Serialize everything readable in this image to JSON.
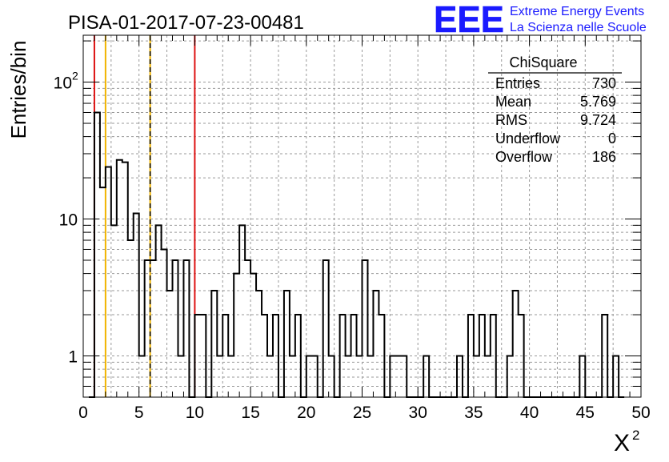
{
  "chart_data": {
    "type": "histogram",
    "title": "PISA-01-2017-07-23-00481",
    "xlabel": "X",
    "xlabel_superscript": "2",
    "ylabel": "Entries/bin",
    "x_range": [
      0,
      50
    ],
    "y_scale": "log",
    "y_range": [
      0.5,
      220
    ],
    "grid": true,
    "bin_width": 0.5,
    "x_ticks": [
      "0",
      "5",
      "10",
      "15",
      "20",
      "25",
      "30",
      "35",
      "40",
      "45",
      "50"
    ],
    "y_ticks": [
      {
        "base": "10",
        "exp": "",
        "value": 10
      },
      {
        "base": "10",
        "exp": "2",
        "value": 100
      },
      {
        "base": "1",
        "exp": "",
        "value": 1
      }
    ],
    "bins": [
      {
        "x": 0.5,
        "y": 0
      },
      {
        "x": 1.0,
        "y": 60
      },
      {
        "x": 1.5,
        "y": 17
      },
      {
        "x": 2.0,
        "y": 24
      },
      {
        "x": 2.5,
        "y": 9
      },
      {
        "x": 3.0,
        "y": 27
      },
      {
        "x": 3.5,
        "y": 26
      },
      {
        "x": 4.0,
        "y": 7
      },
      {
        "x": 4.5,
        "y": 11
      },
      {
        "x": 5.0,
        "y": 1
      },
      {
        "x": 5.5,
        "y": 5
      },
      {
        "x": 6.0,
        "y": 5
      },
      {
        "x": 6.5,
        "y": 9
      },
      {
        "x": 7.0,
        "y": 6
      },
      {
        "x": 7.5,
        "y": 3
      },
      {
        "x": 8.0,
        "y": 5
      },
      {
        "x": 8.5,
        "y": 1
      },
      {
        "x": 9.0,
        "y": 5
      },
      {
        "x": 9.5,
        "y": 0
      },
      {
        "x": 10.0,
        "y": 2
      },
      {
        "x": 10.5,
        "y": 2
      },
      {
        "x": 11.0,
        "y": 0
      },
      {
        "x": 11.5,
        "y": 3
      },
      {
        "x": 12.0,
        "y": 1
      },
      {
        "x": 12.5,
        "y": 2
      },
      {
        "x": 13.0,
        "y": 1
      },
      {
        "x": 13.5,
        "y": 4
      },
      {
        "x": 14.0,
        "y": 9
      },
      {
        "x": 14.5,
        "y": 5
      },
      {
        "x": 15.0,
        "y": 4
      },
      {
        "x": 15.5,
        "y": 3
      },
      {
        "x": 16.0,
        "y": 2
      },
      {
        "x": 16.5,
        "y": 1
      },
      {
        "x": 17.0,
        "y": 2
      },
      {
        "x": 17.5,
        "y": 0
      },
      {
        "x": 18.0,
        "y": 3
      },
      {
        "x": 18.5,
        "y": 1
      },
      {
        "x": 19.0,
        "y": 2
      },
      {
        "x": 19.5,
        "y": 0
      },
      {
        "x": 20.0,
        "y": 1
      },
      {
        "x": 20.5,
        "y": 1
      },
      {
        "x": 21.0,
        "y": 0
      },
      {
        "x": 21.5,
        "y": 5
      },
      {
        "x": 22.0,
        "y": 1
      },
      {
        "x": 22.5,
        "y": 0
      },
      {
        "x": 23.0,
        "y": 2
      },
      {
        "x": 23.5,
        "y": 1
      },
      {
        "x": 24.0,
        "y": 2
      },
      {
        "x": 24.5,
        "y": 1
      },
      {
        "x": 25.0,
        "y": 5
      },
      {
        "x": 25.5,
        "y": 1
      },
      {
        "x": 26.0,
        "y": 3
      },
      {
        "x": 26.5,
        "y": 2
      },
      {
        "x": 27.0,
        "y": 0
      },
      {
        "x": 27.5,
        "y": 1
      },
      {
        "x": 28.0,
        "y": 1
      },
      {
        "x": 28.5,
        "y": 1
      },
      {
        "x": 29.0,
        "y": 0
      },
      {
        "x": 29.5,
        "y": 0
      },
      {
        "x": 30.0,
        "y": 0
      },
      {
        "x": 30.5,
        "y": 1
      },
      {
        "x": 31.0,
        "y": 0
      },
      {
        "x": 31.5,
        "y": 0
      },
      {
        "x": 32.0,
        "y": 0
      },
      {
        "x": 32.5,
        "y": 0
      },
      {
        "x": 33.0,
        "y": 0
      },
      {
        "x": 33.5,
        "y": 1
      },
      {
        "x": 34.0,
        "y": 0
      },
      {
        "x": 34.5,
        "y": 2
      },
      {
        "x": 35.0,
        "y": 1
      },
      {
        "x": 35.5,
        "y": 2
      },
      {
        "x": 36.0,
        "y": 1
      },
      {
        "x": 36.5,
        "y": 2
      },
      {
        "x": 37.0,
        "y": 0
      },
      {
        "x": 37.5,
        "y": 0
      },
      {
        "x": 38.0,
        "y": 1
      },
      {
        "x": 38.5,
        "y": 3
      },
      {
        "x": 39.0,
        "y": 2
      },
      {
        "x": 39.5,
        "y": 0
      },
      {
        "x": 40.0,
        "y": 0
      },
      {
        "x": 40.5,
        "y": 0
      },
      {
        "x": 41.0,
        "y": 0
      },
      {
        "x": 41.5,
        "y": 0
      },
      {
        "x": 42.0,
        "y": 0
      },
      {
        "x": 42.5,
        "y": 0
      },
      {
        "x": 43.0,
        "y": 0
      },
      {
        "x": 43.5,
        "y": 0
      },
      {
        "x": 44.0,
        "y": 0
      },
      {
        "x": 44.5,
        "y": 1
      },
      {
        "x": 45.0,
        "y": 0
      },
      {
        "x": 45.5,
        "y": 0
      },
      {
        "x": 46.0,
        "y": 0
      },
      {
        "x": 46.5,
        "y": 2
      },
      {
        "x": 47.0,
        "y": 0
      },
      {
        "x": 47.5,
        "y": 1
      },
      {
        "x": 48.0,
        "y": 0
      }
    ],
    "reference_lines": [
      {
        "x": 1,
        "color": "#dd1111",
        "style": "solid"
      },
      {
        "x": 2,
        "color": "#f0b400",
        "style": "solid"
      },
      {
        "x": 6,
        "color": "#f0b400",
        "style": "solid"
      },
      {
        "x": 6,
        "color": "#000000",
        "style": "dashed"
      },
      {
        "x": 10,
        "color": "#dd1111",
        "style": "solid"
      }
    ],
    "stats": {
      "title": "ChiSquare",
      "rows": [
        {
          "label": "Entries",
          "value": "730"
        },
        {
          "label": "Mean",
          "value": "5.769"
        },
        {
          "label": "RMS",
          "value": "9.724"
        },
        {
          "label": "Underflow",
          "value": "0"
        },
        {
          "label": "Overflow",
          "value": "186"
        }
      ]
    },
    "legend_placement": "top-right"
  },
  "logo": {
    "letters": "EEE",
    "line1": "Extreme Energy Events",
    "line2": "La Scienza nelle Scuole",
    "color": "#1a1aff"
  }
}
